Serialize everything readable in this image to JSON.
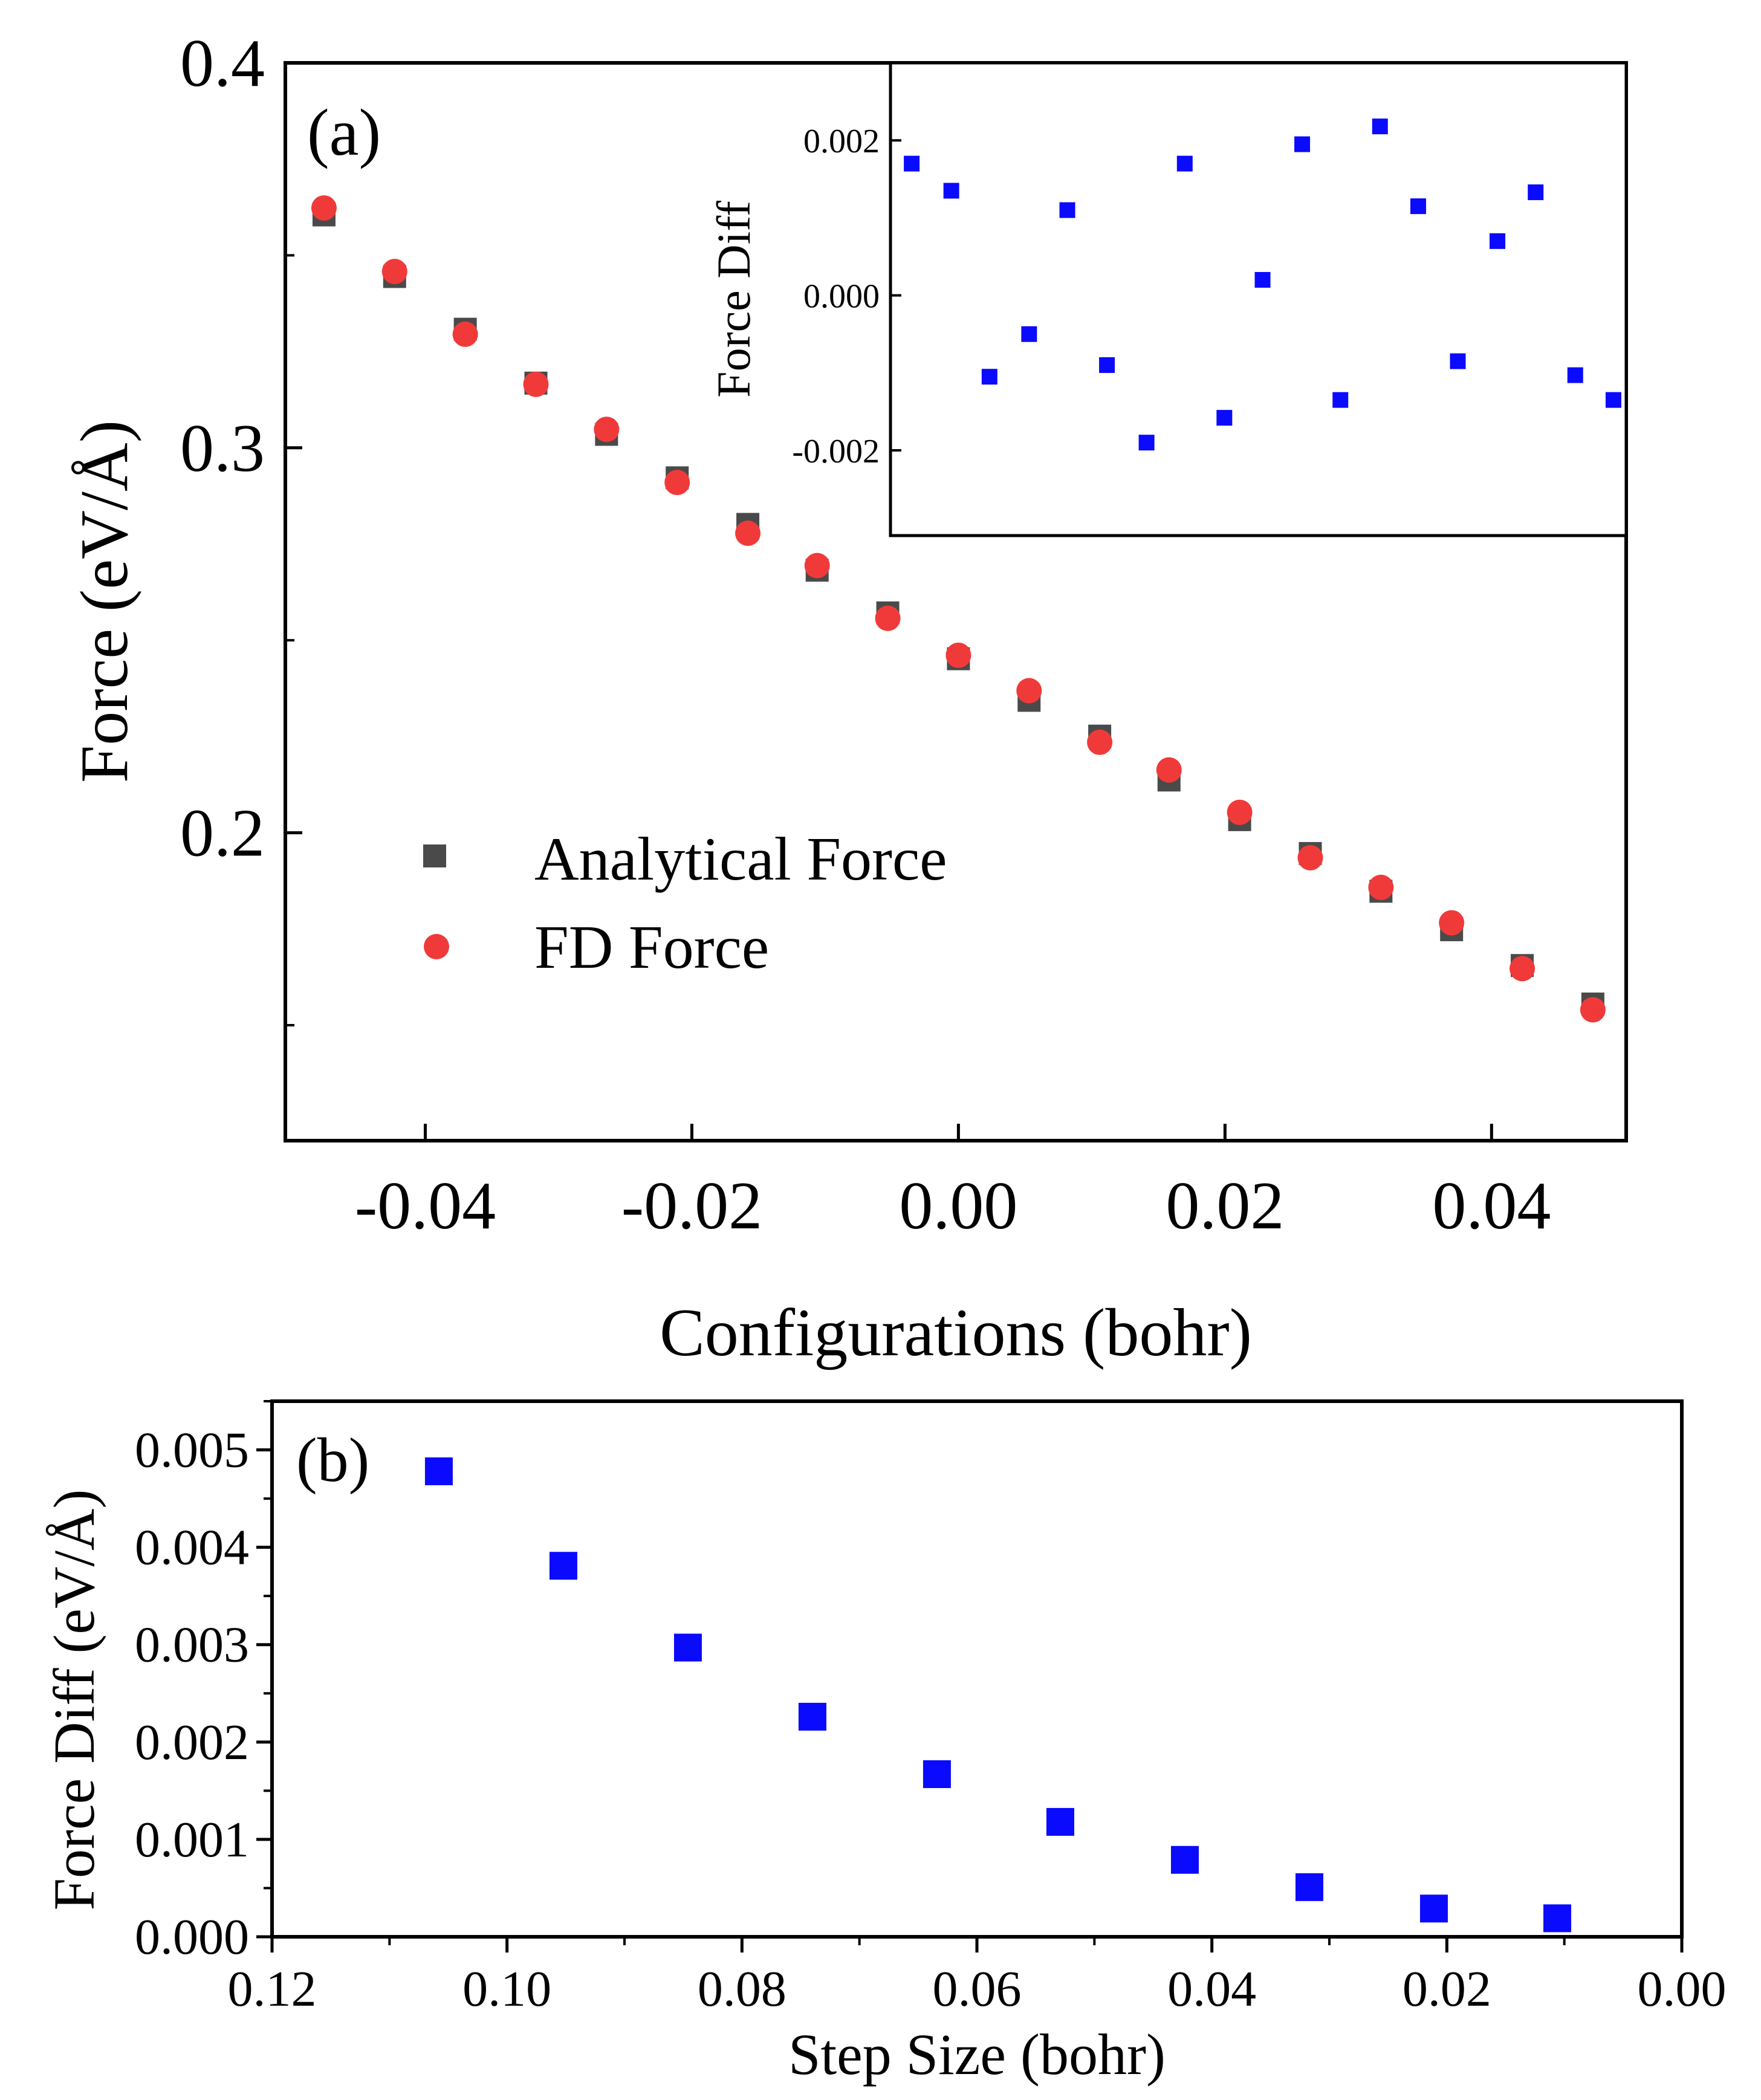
{
  "chart_data": [
    {
      "id": "a",
      "panel_label": "(a)",
      "type": "scatter",
      "xlabel": "Configurations (bohr)",
      "ylabel": "Force (eV/Å)",
      "xlim": [
        -0.0505,
        0.0501
      ],
      "ylim": [
        0.12,
        0.4
      ],
      "xticks": [
        -0.04,
        -0.02,
        0.0,
        0.02,
        0.04
      ],
      "xtick_labels": [
        "-0.04",
        "-0.02",
        "0.00",
        "0.02",
        "0.04"
      ],
      "yticks": [
        0.2,
        0.3,
        0.4
      ],
      "ytick_labels": [
        "0.2",
        "0.3",
        "0.4"
      ],
      "legend_position": "lower-left",
      "x": [
        -0.0476,
        -0.0423,
        -0.037,
        -0.0317,
        -0.0264,
        -0.0211,
        -0.0158,
        -0.0106,
        -0.0053,
        0.0,
        0.0053,
        0.0106,
        0.0158,
        0.0211,
        0.0264,
        0.0317,
        0.037,
        0.0423,
        0.0476
      ],
      "series": [
        {
          "name": "Analytical Force",
          "marker": "square",
          "color": "#4a4a4a",
          "values": [
            0.3605,
            0.3445,
            0.3308,
            0.3168,
            0.3035,
            0.2922,
            0.2801,
            0.2682,
            0.2571,
            0.2452,
            0.2344,
            0.2251,
            0.2137,
            0.2034,
            0.1946,
            0.1848,
            0.1748,
            0.1655,
            0.1555
          ]
        },
        {
          "name": "FD Force",
          "marker": "circle",
          "color": "#f03a3a",
          "values": [
            0.3623,
            0.3458,
            0.3295,
            0.3165,
            0.3048,
            0.291,
            0.2778,
            0.2694,
            0.2557,
            0.2461,
            0.2369,
            0.2235,
            0.2163,
            0.2053,
            0.1935,
            0.1858,
            0.1766,
            0.1647,
            0.154
          ]
        }
      ]
    },
    {
      "id": "a-inset",
      "type": "scatter",
      "xlabel": "",
      "ylabel": "Force Diff",
      "xlim": [
        -0.0015,
        0.0505
      ],
      "ylim": [
        -0.0031,
        0.003
      ],
      "yticks": [
        -0.002,
        0.0,
        0.002
      ],
      "ytick_labels": [
        "-0.002",
        "0.000",
        "0.002"
      ],
      "series": [
        {
          "name": "Force Diff",
          "marker": "square",
          "color": "#0a0aff",
          "x": [
            0.0,
            0.0028,
            0.0055,
            0.0083,
            0.011,
            0.0138,
            0.0166,
            0.0193,
            0.0221,
            0.0248,
            0.0276,
            0.0303,
            0.0331,
            0.0358,
            0.0386,
            0.0414,
            0.0441,
            0.0469,
            0.0496
          ],
          "values": [
            0.0017,
            0.00135,
            -0.00105,
            -0.0005,
            0.0011,
            -0.0009,
            -0.0019,
            0.0017,
            -0.00158,
            0.0002,
            0.00195,
            -0.00135,
            0.00218,
            0.00115,
            -0.00085,
            0.0007,
            0.00133,
            -0.00103,
            -0.00135
          ]
        }
      ]
    },
    {
      "id": "b",
      "panel_label": "(b)",
      "type": "scatter",
      "xlabel": "Step Size (bohr)",
      "ylabel": "Force Diff (eV/Å)",
      "xlim": [
        0.12,
        0.0
      ],
      "ylim": [
        0.0,
        0.0055
      ],
      "xticks": [
        0.12,
        0.1,
        0.08,
        0.06,
        0.04,
        0.02,
        0.0
      ],
      "xtick_labels": [
        "0.12",
        "0.10",
        "0.08",
        "0.06",
        "0.04",
        "0.02",
        "0.00"
      ],
      "yticks": [
        0.0,
        0.001,
        0.002,
        0.003,
        0.004,
        0.005
      ],
      "ytick_labels": [
        "0.000",
        "0.001",
        "0.002",
        "0.003",
        "0.004",
        "0.005"
      ],
      "series": [
        {
          "name": "Force Diff",
          "marker": "square",
          "color": "#0a0aff",
          "x": [
            0.1058,
            0.0952,
            0.0846,
            0.074,
            0.0634,
            0.0529,
            0.0423,
            0.0317,
            0.0211,
            0.0106
          ],
          "values": [
            0.00478,
            0.00381,
            0.00297,
            0.00226,
            0.00167,
            0.00118,
            0.00079,
            0.00051,
            0.00029,
            0.00019
          ]
        }
      ]
    }
  ]
}
